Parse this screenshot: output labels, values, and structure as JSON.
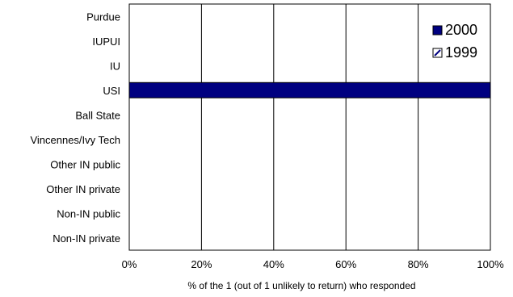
{
  "chart_data": {
    "type": "bar",
    "orientation": "horizontal",
    "categories": [
      "Purdue",
      "IUPUI",
      "IU",
      "USI",
      "Ball State",
      "Vincennes/Ivy Tech",
      "Other IN public",
      "Other IN private",
      "Non-IN public",
      "Non-IN private"
    ],
    "series": [
      {
        "name": "2000",
        "values": [
          0,
          0,
          0,
          100,
          0,
          0,
          0,
          0,
          0,
          0
        ],
        "color": "#000080"
      },
      {
        "name": "1999",
        "values": [
          0,
          0,
          0,
          0,
          0,
          0,
          0,
          0,
          0,
          0
        ],
        "color": "#ffffff"
      }
    ],
    "xlabel": "% of the 1 (out of 1 unlikely to return) who responded",
    "ylabel": "",
    "xlim": [
      0,
      100
    ],
    "xticks": [
      "0%",
      "20%",
      "40%",
      "60%",
      "80%",
      "100%"
    ],
    "grid": "vertical",
    "legend_position": "top-right"
  }
}
